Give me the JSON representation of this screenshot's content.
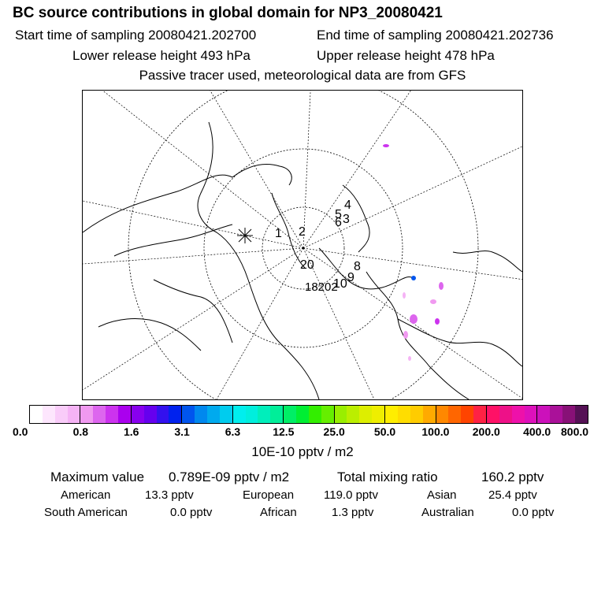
{
  "header": {
    "title": "BC  source contributions in global domain for NP3_20080421",
    "start_label": "Start time of sampling 20080421.202700",
    "end_label": "End time of sampling 20080421.202736",
    "lower_label": "Lower release height  493 hPa",
    "upper_label": "Upper release height  478 hPa",
    "note": "Passive tracer used, meteorological data are from GFS"
  },
  "map": {
    "markers": [
      {
        "id": "1",
        "label": "1"
      },
      {
        "id": "2",
        "label": "2"
      },
      {
        "id": "3",
        "label": "3"
      },
      {
        "id": "4",
        "label": "4"
      },
      {
        "id": "5",
        "label": "5"
      },
      {
        "id": "6",
        "label": "6"
      },
      {
        "id": "8",
        "label": "8"
      },
      {
        "id": "9",
        "label": "9"
      },
      {
        "id": "10",
        "label": "10"
      },
      {
        "id": "20",
        "label": "20"
      },
      {
        "id": "cluster",
        "label": "18202"
      }
    ]
  },
  "colorbar": {
    "colors": [
      "#ffffff",
      "#fde6fd",
      "#f9ccf9",
      "#f5b3f5",
      "#f099f0",
      "#dd66ee",
      "#cc33ee",
      "#aa00ee",
      "#8800ee",
      "#6600ee",
      "#3311ee",
      "#0022ee",
      "#0055ee",
      "#0088ee",
      "#00aaee",
      "#00ccee",
      "#00eeee",
      "#00eedd",
      "#00eebb",
      "#00ee99",
      "#00ee66",
      "#00ee33",
      "#33ee00",
      "#66ee00",
      "#99ee00",
      "#bbee00",
      "#ddee00",
      "#eeee00",
      "#ffee00",
      "#ffdd00",
      "#ffcc00",
      "#ffaa00",
      "#ff8800",
      "#ff6600",
      "#ff4400",
      "#ff2244",
      "#ff1166",
      "#ee1188",
      "#ee11aa",
      "#dd11bb",
      "#cc11bb",
      "#aa1199",
      "#881177",
      "#551155"
    ],
    "ticks": [
      "0.0",
      "0.8",
      "1.6",
      "3.1",
      "6.3",
      "12.5",
      "25.0",
      "50.0",
      "100.0",
      "200.0",
      "400.0",
      "800.0"
    ],
    "unit": "10E-10 pptv / m2"
  },
  "stats": {
    "max_label": "Maximum value",
    "max_value": "0.789E-09 pptv / m2",
    "total_label": "Total mixing ratio",
    "total_value": "160.2 pptv",
    "regions": [
      {
        "name": "American",
        "value": "13.3 pptv"
      },
      {
        "name": "European",
        "value": "119.0 pptv"
      },
      {
        "name": "Asian",
        "value": "25.4 pptv"
      },
      {
        "name": "South American",
        "value": "0.0 pptv"
      },
      {
        "name": "African",
        "value": "1.3 pptv"
      },
      {
        "name": "Australian",
        "value": "0.0 pptv"
      }
    ]
  }
}
